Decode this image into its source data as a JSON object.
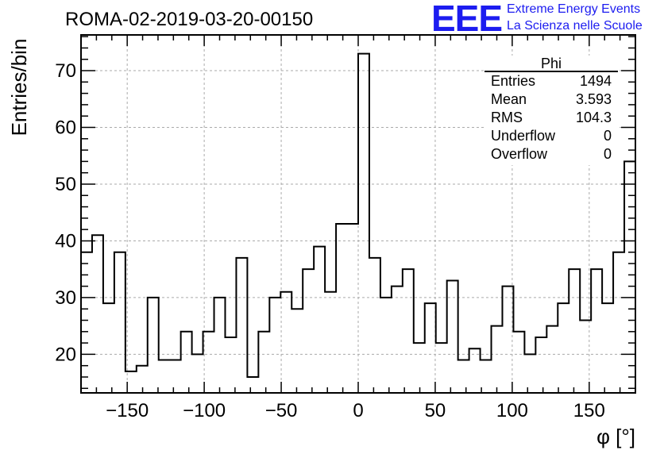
{
  "chart_data": {
    "type": "histogram",
    "title": "ROMA-02-2019-03-20-00150",
    "xlabel": "φ [°]",
    "ylabel": "Entries/bin",
    "xlim": [
      -180,
      180
    ],
    "ylim": [
      13.2,
      76.3
    ],
    "xticks": [
      -150,
      -100,
      -50,
      0,
      50,
      100,
      150
    ],
    "yticks": [
      20,
      30,
      40,
      50,
      60,
      70
    ],
    "grid": true,
    "bin_width": 7.2,
    "bins_start": -180,
    "values": [
      38,
      41,
      29,
      38,
      17,
      18,
      30,
      19,
      19,
      24,
      20,
      24,
      30,
      23,
      37,
      16,
      24,
      30,
      31,
      28,
      35,
      39,
      31,
      43,
      43,
      73,
      37,
      30,
      32,
      35,
      22,
      29,
      22,
      33,
      19,
      21,
      19,
      25,
      32,
      24,
      20,
      23,
      25,
      29,
      35,
      26,
      35,
      29,
      38,
      54
    ]
  },
  "stats_box": {
    "title": "Phi",
    "rows": [
      {
        "name": "Entries",
        "value": "1494"
      },
      {
        "name": "Mean",
        "value": "3.593"
      },
      {
        "name": "RMS",
        "value": "104.3"
      },
      {
        "name": "Underflow",
        "value": "0"
      },
      {
        "name": "Overflow",
        "value": "0"
      }
    ]
  },
  "logo": {
    "text": "EEE",
    "line1": "Extreme Energy Events",
    "line2": "La Scienza nelle Scuole"
  }
}
